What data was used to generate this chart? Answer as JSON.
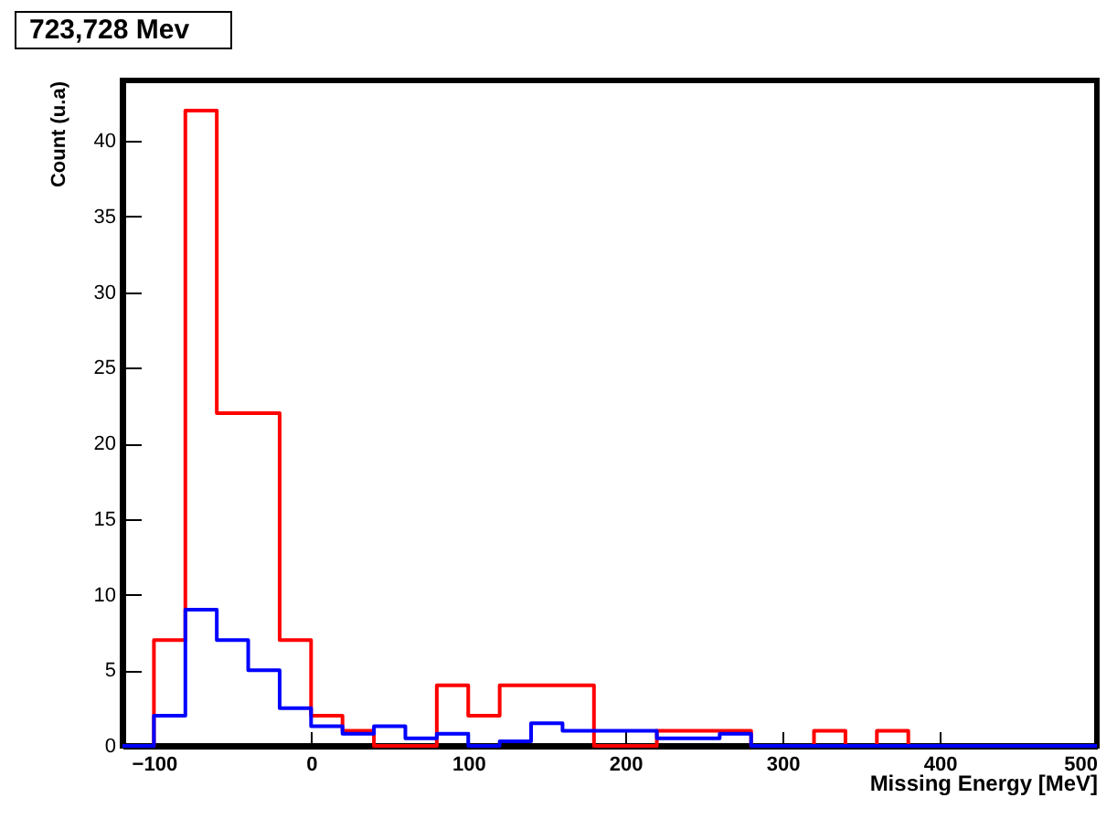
{
  "chart_data": {
    "type": "histogram",
    "title": "723,728 Mev",
    "xlabel": "Missing Energy [MeV]",
    "ylabel": "Count (u.a)",
    "bins": [
      -120,
      -100,
      -80,
      -60,
      -40,
      -20,
      0,
      20,
      40,
      60,
      80,
      100,
      120,
      140,
      160,
      180,
      200,
      220,
      240,
      260,
      280,
      300,
      320,
      340,
      360,
      380,
      400,
      420,
      440,
      460,
      480,
      500
    ],
    "series": [
      {
        "color": "#ff0000",
        "values": [
          0,
          7,
          42,
          22,
          22,
          7,
          2,
          1,
          0,
          0,
          4,
          2,
          4,
          4,
          4,
          0,
          0,
          1,
          1,
          1,
          0,
          0,
          1,
          0,
          1,
          0,
          0,
          0,
          0,
          0,
          0
        ]
      },
      {
        "color": "#0000ff",
        "values": [
          0,
          2,
          9,
          7,
          5,
          2.5,
          1.3,
          0.8,
          1.3,
          0.5,
          0.8,
          0,
          0.3,
          1.5,
          1,
          1,
          1,
          0.5,
          0.5,
          0.8,
          0,
          0,
          0,
          0,
          0,
          0,
          0,
          0,
          0,
          0,
          0
        ]
      }
    ],
    "xlim": [
      -120,
      500
    ],
    "ylim": [
      0,
      44
    ],
    "xticks": [
      -100,
      0,
      100,
      200,
      300,
      400,
      500
    ],
    "yticks": [
      0,
      5,
      10,
      15,
      20,
      25,
      30,
      35,
      40
    ],
    "grid": false
  }
}
